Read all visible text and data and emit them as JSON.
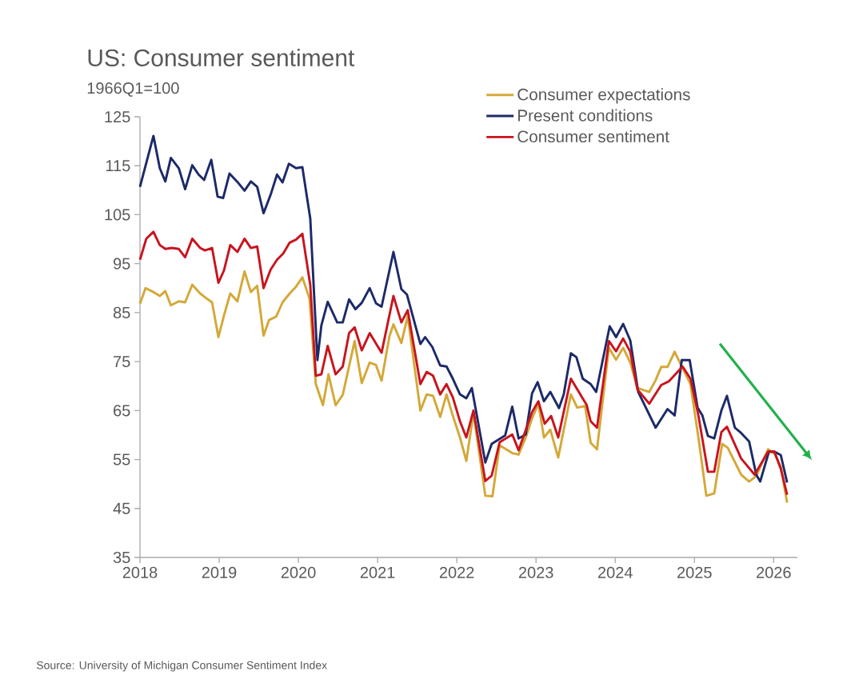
{
  "chart_data": {
    "type": "line",
    "title": "US: Consumer sentiment",
    "ylabel": "1966Q1=100",
    "annotations": [
      "Source: University of Michigan Consumer Sentiment Index"
    ],
    "xlim": [
      2018,
      2026.3
    ],
    "xticks": [
      2018,
      2019,
      2020,
      2021,
      2022,
      2023,
      2024,
      2025,
      2026
    ],
    "ylim": [
      35,
      125
    ],
    "yticks": [
      35,
      45,
      55,
      65,
      75,
      85,
      95,
      105,
      115,
      125
    ],
    "legend": "top right",
    "line_style": "solid",
    "series": [
      {
        "name": "Consumer expectations",
        "color": "#d4a838",
        "x": [
          2018.0,
          2018.07,
          2018.17,
          2018.25,
          2018.32,
          2018.39,
          2018.49,
          2018.57,
          2018.66,
          2018.76,
          2018.84,
          2018.91,
          2018.99,
          2019.06,
          2019.14,
          2019.23,
          2019.32,
          2019.4,
          2019.48,
          2019.56,
          2019.63,
          2019.72,
          2019.8,
          2019.89,
          2019.97,
          2020.05,
          2020.14,
          2020.22,
          2020.31,
          2020.38,
          2020.47,
          2020.56,
          2020.71,
          2020.8,
          2020.9,
          2020.98,
          2021.05,
          2021.15,
          2021.2,
          2021.3,
          2021.38,
          2021.54,
          2021.62,
          2021.7,
          2021.79,
          2021.87,
          2021.95,
          2022.04,
          2022.12,
          2022.21,
          2022.36,
          2022.45,
          2022.54,
          2022.7,
          2022.78,
          2022.87,
          2022.95,
          2023.03,
          2023.1,
          2023.18,
          2023.28,
          2023.44,
          2023.52,
          2023.62,
          2023.69,
          2023.77,
          2023.92,
          2024.01,
          2024.1,
          2024.19,
          2024.28,
          2024.43,
          2024.51,
          2024.58,
          2024.66,
          2024.75,
          2024.85,
          2024.95,
          2025.05,
          2025.15,
          2025.25,
          2025.35,
          2025.42,
          2025.59,
          2025.69,
          2025.78,
          2025.93,
          2026.01,
          2026.09,
          2026.17
        ],
        "values": [
          86.8,
          90.0,
          89.2,
          88.4,
          89.4,
          86.5,
          87.3,
          87.1,
          90.7,
          88.9,
          87.9,
          87.1,
          80.0,
          84.4,
          88.9,
          87.3,
          93.4,
          89.2,
          90.5,
          80.3,
          83.5,
          84.2,
          87.1,
          88.9,
          90.3,
          92.2,
          87.9,
          70.4,
          66.1,
          72.4,
          66.1,
          68.2,
          79.2,
          70.6,
          74.8,
          74.3,
          71.1,
          80.2,
          82.6,
          78.8,
          84.3,
          65.0,
          68.3,
          68.0,
          63.7,
          68.3,
          63.9,
          59.5,
          54.7,
          64.5,
          47.6,
          47.5,
          57.9,
          56.3,
          56.0,
          59.5,
          63.4,
          66.4,
          59.5,
          61.1,
          55.4,
          68.3,
          65.6,
          65.9,
          58.4,
          57.1,
          77.8,
          75.4,
          77.8,
          74.8,
          69.6,
          68.8,
          71.2,
          73.9,
          73.9,
          77.0,
          73.7,
          70.4,
          59.5,
          47.6,
          48.1,
          58.2,
          57.4,
          51.9,
          50.5,
          51.6,
          57.1,
          56.2,
          53.5,
          46.2
        ]
      },
      {
        "name": "Present conditions",
        "color": "#1c2a68",
        "x": [
          2018.0,
          2018.17,
          2018.25,
          2018.32,
          2018.39,
          2018.49,
          2018.57,
          2018.66,
          2018.74,
          2018.81,
          2018.9,
          2018.98,
          2019.05,
          2019.13,
          2019.23,
          2019.32,
          2019.4,
          2019.48,
          2019.56,
          2019.65,
          2019.73,
          2019.8,
          2019.88,
          2019.97,
          2020.05,
          2020.15,
          2020.24,
          2020.29,
          2020.37,
          2020.49,
          2020.56,
          2020.64,
          2020.72,
          2020.8,
          2020.9,
          2020.98,
          2021.05,
          2021.2,
          2021.3,
          2021.37,
          2021.54,
          2021.6,
          2021.69,
          2021.79,
          2021.87,
          2021.95,
          2022.04,
          2022.12,
          2022.19,
          2022.36,
          2022.44,
          2022.61,
          2022.7,
          2022.78,
          2022.87,
          2022.95,
          2023.02,
          2023.1,
          2023.18,
          2023.29,
          2023.35,
          2023.44,
          2023.51,
          2023.59,
          2023.69,
          2023.76,
          2023.93,
          2024.01,
          2024.1,
          2024.19,
          2024.29,
          2024.51,
          2024.66,
          2024.75,
          2024.84,
          2024.94,
          2025.04,
          2025.1,
          2025.17,
          2025.25,
          2025.34,
          2025.41,
          2025.51,
          2025.59,
          2025.69,
          2025.78,
          2025.83,
          2025.94,
          2026.01,
          2026.09,
          2026.17
        ],
        "values": [
          110.7,
          121.1,
          114.5,
          111.8,
          116.6,
          114.5,
          110.2,
          115.1,
          113.2,
          112.1,
          116.2,
          108.7,
          108.4,
          113.4,
          111.7,
          109.9,
          111.8,
          110.7,
          105.3,
          109.1,
          113.2,
          111.6,
          115.4,
          114.5,
          114.7,
          104.2,
          75.3,
          82.4,
          87.2,
          83.0,
          83.0,
          87.7,
          85.7,
          87.0,
          90.0,
          86.9,
          86.2,
          97.4,
          89.8,
          88.7,
          78.6,
          80.0,
          78.0,
          74.2,
          74.0,
          71.5,
          68.3,
          67.5,
          69.6,
          54.4,
          58.2,
          59.9,
          65.8,
          59.3,
          60.1,
          68.5,
          70.8,
          66.9,
          68.8,
          65.5,
          68.3,
          76.7,
          75.9,
          71.5,
          70.4,
          68.8,
          82.2,
          80.0,
          82.7,
          79.3,
          68.8,
          61.5,
          65.3,
          64.0,
          75.3,
          75.3,
          65.6,
          64.0,
          59.8,
          59.3,
          65.0,
          68.0,
          61.5,
          60.4,
          58.7,
          51.9,
          50.5,
          56.6,
          56.6,
          55.9,
          50.3
        ]
      },
      {
        "name": "Consumer sentiment",
        "color": "#c8141e",
        "x": [
          2018.0,
          2018.08,
          2018.17,
          2018.25,
          2018.32,
          2018.4,
          2018.49,
          2018.57,
          2018.66,
          2018.76,
          2018.82,
          2018.91,
          2018.99,
          2019.06,
          2019.14,
          2019.23,
          2019.32,
          2019.4,
          2019.48,
          2019.56,
          2019.65,
          2019.73,
          2019.81,
          2019.89,
          2019.97,
          2020.05,
          2020.15,
          2020.22,
          2020.29,
          2020.37,
          2020.47,
          2020.56,
          2020.64,
          2020.71,
          2020.8,
          2020.9,
          2021.05,
          2021.2,
          2021.3,
          2021.38,
          2021.54,
          2021.62,
          2021.7,
          2021.79,
          2021.87,
          2021.95,
          2022.04,
          2022.12,
          2022.21,
          2022.36,
          2022.44,
          2022.54,
          2022.7,
          2022.78,
          2022.95,
          2023.03,
          2023.11,
          2023.19,
          2023.28,
          2023.44,
          2023.54,
          2023.64,
          2023.69,
          2023.77,
          2023.92,
          2024.01,
          2024.1,
          2024.19,
          2024.28,
          2024.43,
          2024.58,
          2024.68,
          2024.85,
          2024.95,
          2025.05,
          2025.17,
          2025.25,
          2025.34,
          2025.41,
          2025.59,
          2025.76,
          2025.93,
          2026.01,
          2026.09,
          2026.17
        ],
        "values": [
          95.8,
          100.1,
          101.5,
          98.8,
          98.0,
          98.2,
          98.0,
          96.3,
          100.1,
          98.2,
          97.7,
          98.2,
          91.1,
          93.6,
          98.8,
          97.4,
          100.1,
          98.2,
          98.5,
          90.0,
          93.8,
          95.8,
          97.1,
          99.3,
          99.9,
          101.1,
          90.6,
          72.1,
          72.4,
          78.2,
          72.4,
          74.0,
          80.8,
          82.0,
          77.3,
          80.8,
          76.8,
          88.4,
          83.0,
          85.5,
          70.4,
          72.9,
          72.1,
          68.3,
          70.4,
          67.7,
          62.8,
          59.5,
          65.0,
          50.6,
          51.7,
          58.5,
          60.1,
          56.9,
          64.7,
          66.9,
          62.3,
          63.9,
          59.5,
          71.5,
          68.8,
          66.1,
          62.8,
          61.5,
          79.2,
          77.1,
          79.7,
          77.0,
          69.3,
          66.4,
          70.2,
          71.0,
          74.0,
          71.5,
          64.0,
          52.5,
          52.5,
          60.6,
          61.7,
          55.2,
          51.9,
          56.6,
          56.6,
          53.1,
          47.8
        ]
      }
    ]
  }
}
